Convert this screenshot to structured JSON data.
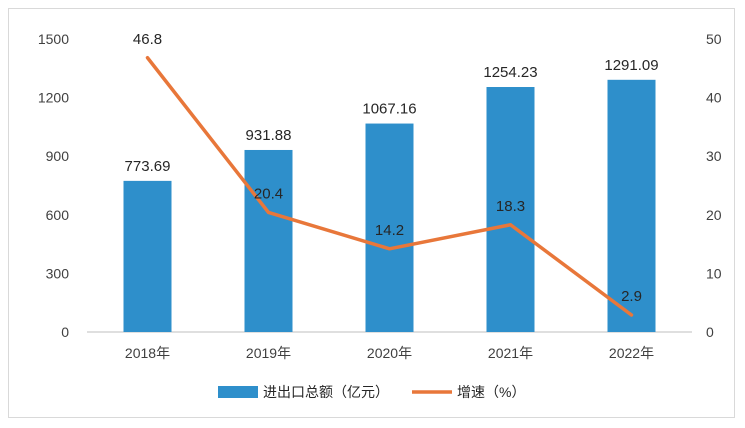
{
  "chart_data": {
    "type": "bar",
    "categories": [
      "2018年",
      "2019年",
      "2020年",
      "2021年",
      "2022年"
    ],
    "series": [
      {
        "name": "进出口总额（亿元）",
        "type": "bar",
        "axis": "left",
        "color": "#2e8fcb",
        "values": [
          773.69,
          931.88,
          1067.16,
          1254.23,
          1291.09
        ],
        "labels": [
          "773.69",
          "931.88",
          "1067.16",
          "1254.23",
          "1291.09"
        ]
      },
      {
        "name": "增速（%）",
        "type": "line",
        "axis": "right",
        "color": "#e8773a",
        "values": [
          46.8,
          20.4,
          14.2,
          18.3,
          2.9
        ],
        "labels": [
          "46.8",
          "20.4",
          "14.2",
          "18.3",
          "2.9"
        ]
      }
    ],
    "y_left": {
      "min": 0,
      "max": 1500,
      "ticks": [
        "0",
        "300",
        "600",
        "900",
        "1200",
        "1500"
      ]
    },
    "y_right": {
      "min": 0,
      "max": 50,
      "ticks": [
        "0",
        "10",
        "20",
        "30",
        "40",
        "50"
      ]
    },
    "grid": false,
    "legend_position": "bottom"
  }
}
